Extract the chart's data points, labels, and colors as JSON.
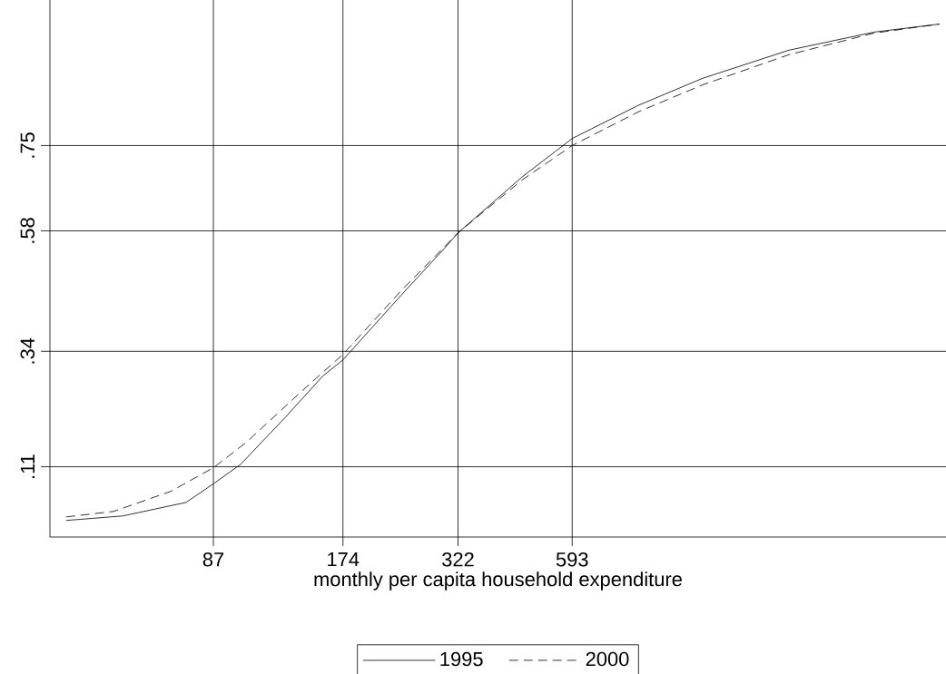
{
  "chart_data": {
    "type": "line",
    "xlabel": "monthly per capita household expenditure",
    "log": "x",
    "xlim": [
      36.3,
      4380
    ],
    "ylim": [
      -0.03,
      1.04
    ],
    "xticks": [
      87,
      174,
      322,
      593
    ],
    "yticks": [
      {
        "value": 0.11,
        "label": ".11"
      },
      {
        "value": 0.34,
        "label": ".34"
      },
      {
        "value": 0.58,
        "label": ".58"
      },
      {
        "value": 0.75,
        "label": ".75"
      }
    ],
    "grid": true,
    "legend": "bottom",
    "series": [
      {
        "name": "1995",
        "color": "#000000",
        "line_style": "solid",
        "x": [
          39.6,
          53.6,
          75.2,
          87,
          100.7,
          128.3,
          155.9,
          174,
          237.7,
          300,
          322,
          453,
          593,
          844,
          1192,
          1890,
          2981,
          4225
        ],
        "values": [
          0.003,
          0.012,
          0.039,
          0.076,
          0.115,
          0.21,
          0.29,
          0.323,
          0.452,
          0.546,
          0.576,
          0.687,
          0.764,
          0.83,
          0.884,
          0.94,
          0.976,
          0.992
        ]
      },
      {
        "name": "2000",
        "color": "#000000",
        "line_style": "dashed",
        "x": [
          39.6,
          51,
          69.3,
          87,
          104.2,
          139.3,
          174,
          237.7,
          322,
          453,
          593,
          844,
          1192,
          1890,
          2981,
          4225
        ],
        "values": [
          0.01,
          0.021,
          0.061,
          0.108,
          0.16,
          0.26,
          0.334,
          0.461,
          0.576,
          0.681,
          0.75,
          0.817,
          0.871,
          0.931,
          0.974,
          0.992
        ]
      }
    ]
  }
}
